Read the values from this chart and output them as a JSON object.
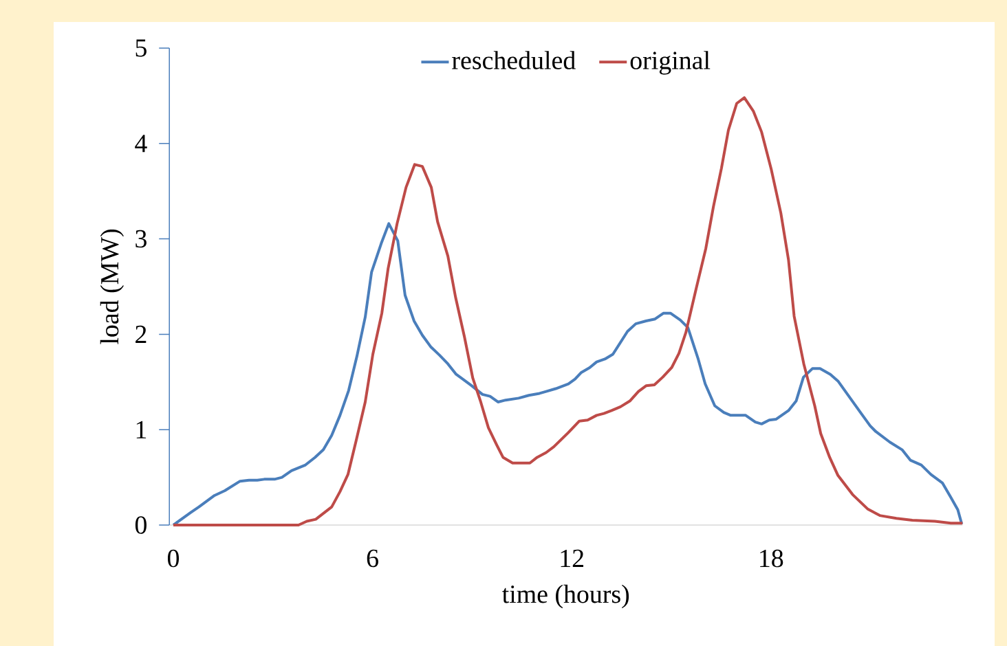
{
  "chart_data": {
    "type": "line",
    "xlabel": "time (hours)",
    "ylabel": "load (MW)",
    "xlim": [
      -0.12,
      23.77
    ],
    "xticks": [
      0,
      6,
      12,
      18
    ],
    "ylim": [
      0,
      5
    ],
    "yticks": [
      0,
      1,
      2,
      3,
      4,
      5
    ],
    "legend": "top",
    "marker": "none",
    "line_style": "solid",
    "series": [
      {
        "name": "rescheduled",
        "color": "#4a7ebb",
        "x": [
          0,
          0.52,
          0.77,
          1.24,
          1.55,
          2.01,
          2.28,
          2.53,
          2.74,
          3.05,
          3.27,
          3.56,
          3.98,
          4.27,
          4.52,
          4.77,
          5.02,
          5.28,
          5.53,
          5.78,
          5.97,
          6.26,
          6.49,
          6.76,
          6.98,
          7.25,
          7.5,
          7.75,
          8.02,
          8.27,
          8.52,
          8.76,
          8.99,
          9.31,
          9.54,
          9.78,
          10.01,
          10.4,
          10.71,
          11.03,
          11.23,
          11.52,
          11.9,
          12.1,
          12.29,
          12.54,
          12.75,
          13.0,
          13.24,
          13.68,
          13.93,
          14.24,
          14.51,
          14.76,
          14.98,
          15.27,
          15.5,
          15.81,
          16.02,
          16.31,
          16.58,
          16.79,
          17.24,
          17.53,
          17.72,
          17.95,
          18.16,
          18.53,
          18.76,
          18.98,
          19.25,
          19.48,
          19.79,
          20.02,
          20.39,
          20.72,
          20.99,
          21.16,
          21.58,
          21.95,
          22.2,
          22.53,
          22.82,
          23.17,
          23.42,
          23.63,
          23.75
        ],
        "values": [
          0,
          0.13,
          0.19,
          0.31,
          0.36,
          0.46,
          0.47,
          0.47,
          0.48,
          0.48,
          0.5,
          0.57,
          0.63,
          0.71,
          0.79,
          0.94,
          1.15,
          1.41,
          1.77,
          2.18,
          2.65,
          2.95,
          3.16,
          2.98,
          2.41,
          2.14,
          1.99,
          1.87,
          1.78,
          1.69,
          1.58,
          1.52,
          1.46,
          1.37,
          1.35,
          1.29,
          1.31,
          1.33,
          1.36,
          1.38,
          1.4,
          1.43,
          1.48,
          1.53,
          1.6,
          1.65,
          1.71,
          1.74,
          1.79,
          2.03,
          2.11,
          2.14,
          2.16,
          2.22,
          2.22,
          2.15,
          2.07,
          1.74,
          1.48,
          1.25,
          1.18,
          1.15,
          1.15,
          1.08,
          1.06,
          1.1,
          1.11,
          1.2,
          1.3,
          1.55,
          1.64,
          1.64,
          1.58,
          1.51,
          1.33,
          1.17,
          1.04,
          0.98,
          0.87,
          0.79,
          0.68,
          0.63,
          0.53,
          0.44,
          0.29,
          0.16,
          0.01
        ]
      },
      {
        "name": "original",
        "color": "#be4b48",
        "x": [
          0,
          3.77,
          4.02,
          4.29,
          4.77,
          5.02,
          5.26,
          5.51,
          5.78,
          6.01,
          6.28,
          6.47,
          6.74,
          7.01,
          7.27,
          7.5,
          7.77,
          7.96,
          8.27,
          8.5,
          8.77,
          9.02,
          9.26,
          9.49,
          9.74,
          9.93,
          10.22,
          10.74,
          10.96,
          11.23,
          11.46,
          11.9,
          12.23,
          12.48,
          12.75,
          12.97,
          13.2,
          13.47,
          13.75,
          14.01,
          14.24,
          14.49,
          14.74,
          15.01,
          15.23,
          15.44,
          15.75,
          16.04,
          16.27,
          16.51,
          16.72,
          16.97,
          17.2,
          17.47,
          17.72,
          18.01,
          18.3,
          18.53,
          18.7,
          18.99,
          19.32,
          19.5,
          19.77,
          20.02,
          20.46,
          20.91,
          21.28,
          21.78,
          22.26,
          22.94,
          23.42,
          23.77
        ],
        "values": [
          0,
          0,
          0.04,
          0.06,
          0.19,
          0.35,
          0.53,
          0.89,
          1.29,
          1.79,
          2.22,
          2.69,
          3.16,
          3.54,
          3.78,
          3.76,
          3.54,
          3.18,
          2.82,
          2.39,
          1.97,
          1.54,
          1.29,
          1.02,
          0.84,
          0.71,
          0.65,
          0.65,
          0.71,
          0.76,
          0.82,
          0.97,
          1.09,
          1.1,
          1.15,
          1.17,
          1.2,
          1.24,
          1.3,
          1.4,
          1.46,
          1.47,
          1.55,
          1.65,
          1.8,
          2.02,
          2.48,
          2.9,
          3.34,
          3.74,
          4.14,
          4.42,
          4.48,
          4.34,
          4.12,
          3.73,
          3.27,
          2.78,
          2.19,
          1.69,
          1.25,
          0.96,
          0.71,
          0.52,
          0.32,
          0.17,
          0.1,
          0.07,
          0.05,
          0.04,
          0.02,
          0.02
        ]
      }
    ]
  }
}
